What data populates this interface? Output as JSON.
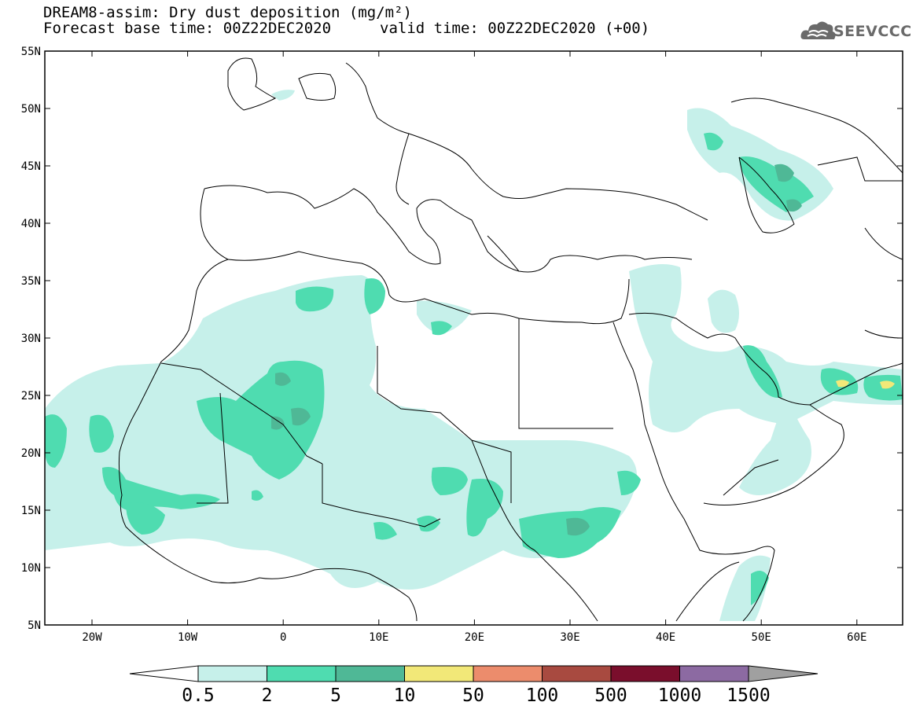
{
  "header": {
    "title": "DREAM8-assim: Dry dust deposition (mg/m²)",
    "base_time": "Forecast base time: 00Z22DEC2020",
    "valid_time": "valid time: 00Z22DEC2020 (+00)",
    "logo_text": "SEEVCCC",
    "logo_icon": "cloud-logo-icon"
  },
  "axes": {
    "lat_labels": [
      "55N",
      "50N",
      "45N",
      "40N",
      "35N",
      "30N",
      "25N",
      "20N",
      "15N",
      "10N",
      "5N"
    ],
    "lon_labels": [
      "20W",
      "10W",
      "0",
      "10E",
      "20E",
      "30E",
      "40E",
      "50E",
      "60E"
    ]
  },
  "colorbar": {
    "labels": [
      "0.5",
      "2",
      "5",
      "10",
      "50",
      "100",
      "500",
      "1000",
      "1500"
    ],
    "colors": [
      "#c6f0ea",
      "#4fdcb0",
      "#4fb896",
      "#f2e878",
      "#ec8c6c",
      "#a84a40",
      "#7a0e2c",
      "#8c6aa2",
      "#a0a0a0"
    ]
  },
  "map_colors": {
    "lightest": "#c6f0ea",
    "light": "#4fdcb0",
    "mid": "#4fb896",
    "yellow": "#f2e878"
  }
}
